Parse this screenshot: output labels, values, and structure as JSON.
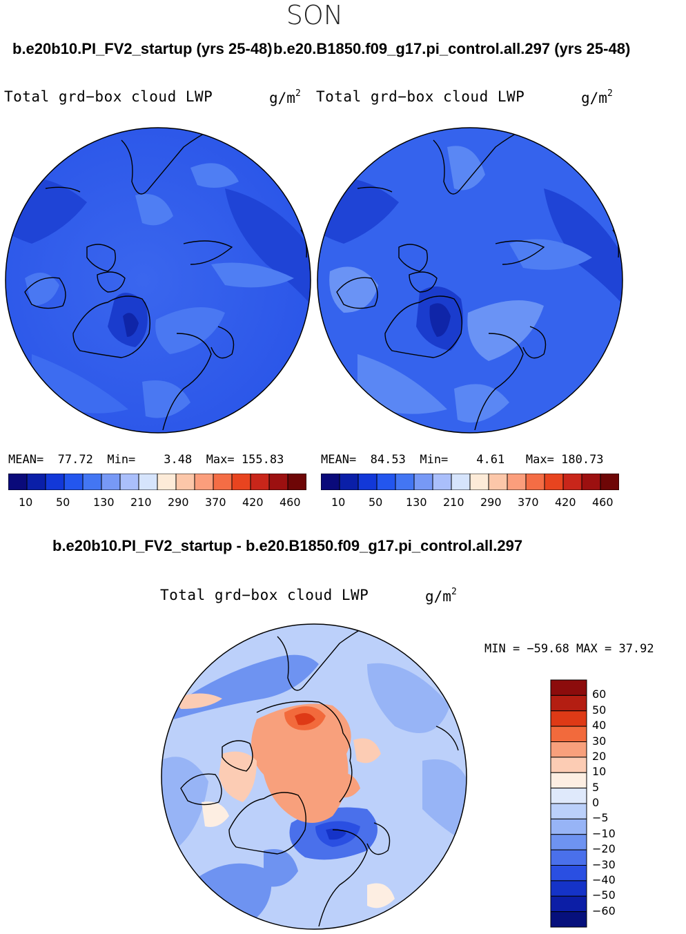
{
  "season": "SON",
  "panels": [
    {
      "case_title": "b.e20b10.PI_FV2_startup (yrs 25-48)",
      "variable": "Total grd−box cloud LWP",
      "units_base": "g/m",
      "units_exp": "2",
      "stats": {
        "mean_label": "MEAN=",
        "mean": "77.72",
        "min_label": "Min=",
        "min": "3.48",
        "max_label": "Max=",
        "max": "155.83"
      }
    },
    {
      "case_title": "b.e20.B1850.f09_g17.pi_control.all.297 (yrs 25-48)",
      "variable": "Total grd−box cloud LWP",
      "units_base": "g/m",
      "units_exp": "2",
      "stats": {
        "mean_label": "MEAN=",
        "mean": "84.53",
        "min_label": "Min=",
        "min": "4.61",
        "max_label": "Max=",
        "max": "180.73"
      }
    }
  ],
  "abs_colorbar": {
    "colors": [
      "#0a0a7a",
      "#0a1fa8",
      "#1238d8",
      "#2356ee",
      "#4376f3",
      "#7799f6",
      "#aabffb",
      "#d6e4fc",
      "#fdebd8",
      "#fcc7a9",
      "#fb9e7c",
      "#f46d45",
      "#e8441f",
      "#c9261a",
      "#9c1010",
      "#6e0606"
    ],
    "labels": [
      "10",
      "50",
      "130",
      "210",
      "290",
      "370",
      "420",
      "460"
    ]
  },
  "diff": {
    "title": "b.e20b10.PI_FV2_startup - b.e20.B1850.f09_g17.pi_control.all.297",
    "variable": "Total grd−box cloud LWP",
    "units_base": "g/m",
    "units_exp": "2",
    "minmax": "MIN = −59.68 MAX =  37.92",
    "colorbar": {
      "colors": [
        "#8c0c0c",
        "#b41e12",
        "#de3a16",
        "#f26a3c",
        "#f8a07c",
        "#fcccb4",
        "#fdeee2",
        "#dfe9fb",
        "#bbd0fa",
        "#97b4f6",
        "#6e93f1",
        "#4a70eb",
        "#2a4fe2",
        "#1533c8",
        "#0c1ea6",
        "#06107c"
      ],
      "labels": [
        "60",
        "50",
        "40",
        "30",
        "20",
        "10",
        "5",
        "0",
        "−5",
        "−10",
        "−20",
        "−30",
        "−40",
        "−50",
        "−60"
      ]
    }
  }
}
